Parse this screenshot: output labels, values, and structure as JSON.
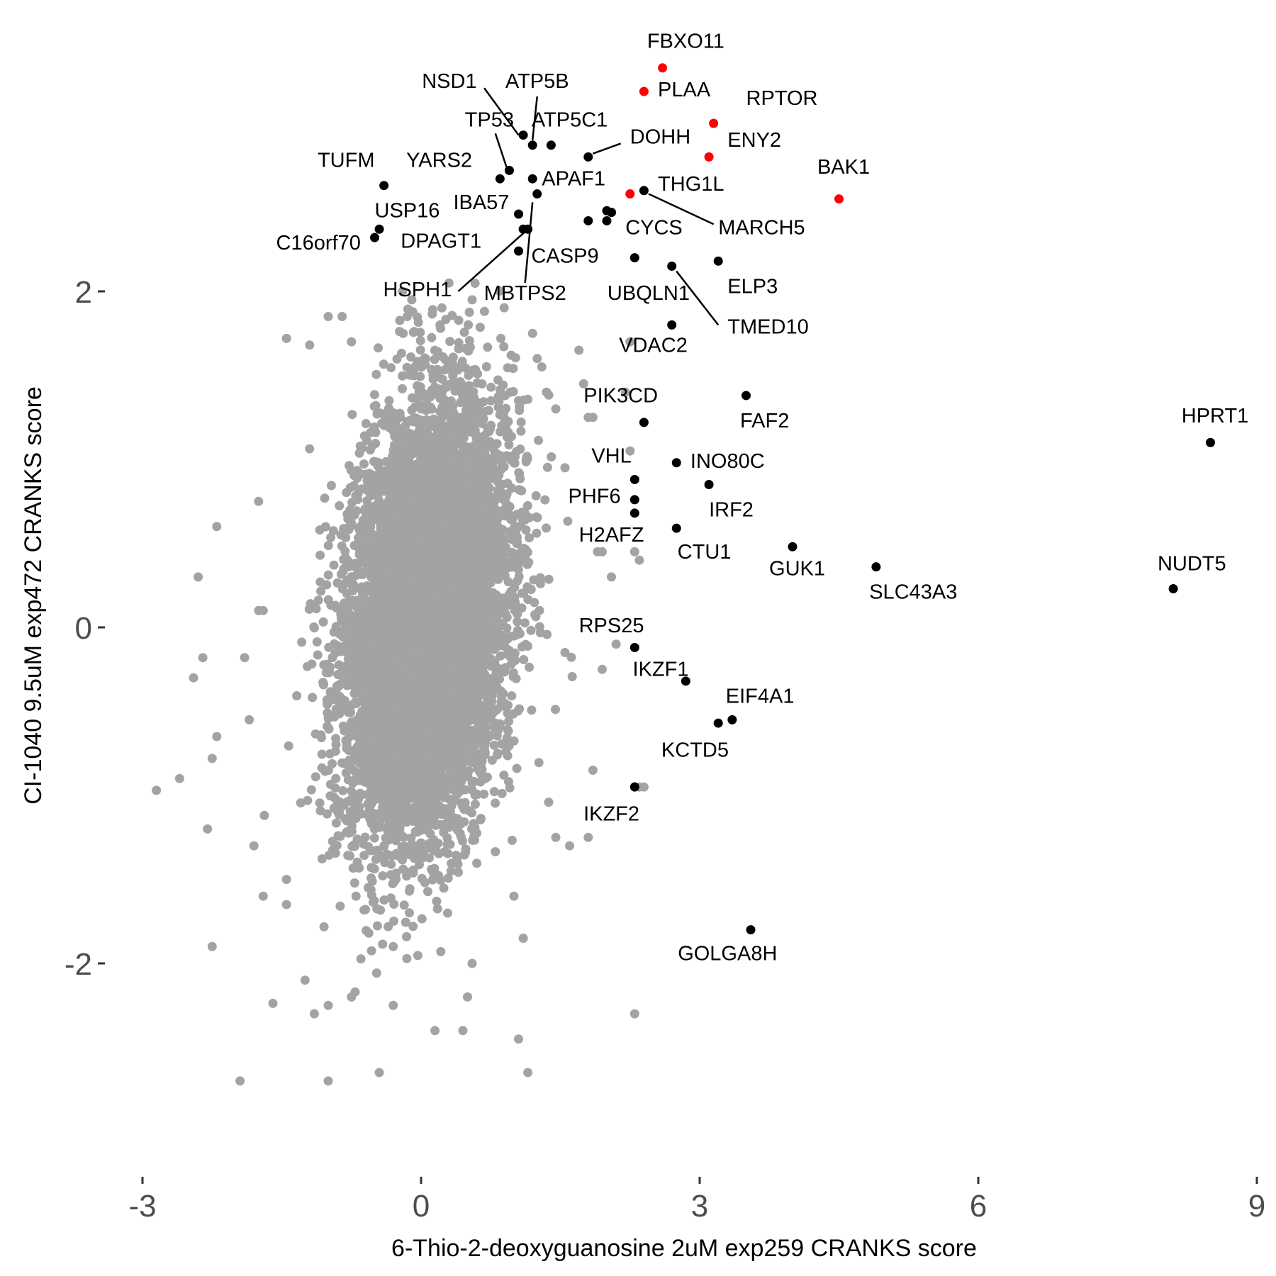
{
  "chart_data": {
    "type": "scatter",
    "title": "",
    "xlabel": "6-Thio-2-deoxyguanosine 2uM exp259 CRANKS score",
    "ylabel": "CI-1040 9.5uM exp472 CRANKS score",
    "xlim": [
      -3.4,
      9
    ],
    "ylim": [
      -3.2,
      3.45
    ],
    "x_ticks": [
      -3,
      0,
      3,
      6,
      9
    ],
    "x_tick_labels": [
      "-3",
      "0",
      "3",
      "6",
      "9"
    ],
    "y_ticks": [
      -2,
      0,
      2
    ],
    "y_tick_labels": [
      "-2",
      "0",
      "2"
    ],
    "grid": false,
    "legend": "none",
    "colors": {
      "background": "#e8e8e8",
      "highlight": "#ff0000",
      "labeled": "#000000",
      "tick": "#4d4d4d"
    },
    "background_cloud": {
      "description_free": true,
      "x_mean": 0.05,
      "x_sd": 0.42,
      "y_mean": 0.05,
      "y_sd": 0.62,
      "correlation": 0.25,
      "count": 9000,
      "sparse_points": [
        [
          -2.85,
          -0.97
        ],
        [
          -2.6,
          -0.9
        ],
        [
          -2.45,
          -0.3
        ],
        [
          -2.4,
          0.3
        ],
        [
          -2.35,
          -0.18
        ],
        [
          -2.3,
          -1.2
        ],
        [
          -2.25,
          -0.78
        ],
        [
          -2.2,
          0.6
        ],
        [
          -2.2,
          -0.65
        ],
        [
          -2.25,
          -1.9
        ],
        [
          -1.9,
          -0.18
        ],
        [
          -1.85,
          -0.55
        ],
        [
          -1.75,
          0.1
        ],
        [
          -1.75,
          0.75
        ],
        [
          -1.7,
          0.1
        ],
        [
          -1.8,
          -1.3
        ],
        [
          -1.7,
          -1.6
        ],
        [
          -1.95,
          -2.7
        ],
        [
          -1.45,
          1.72
        ],
        [
          -1.45,
          -1.5
        ],
        [
          -1.45,
          -1.65
        ],
        [
          -1.2,
          1.68
        ],
        [
          -1.25,
          -2.1
        ],
        [
          -1.15,
          -2.3
        ],
        [
          -1.0,
          1.85
        ],
        [
          -1.0,
          -2.25
        ],
        [
          -1.0,
          -2.7
        ],
        [
          -0.85,
          1.85
        ],
        [
          -0.75,
          1.7
        ],
        [
          -0.7,
          -1.6
        ],
        [
          -0.75,
          -2.2
        ],
        [
          -0.45,
          -2.65
        ],
        [
          -0.3,
          -2.25
        ],
        [
          -0.2,
          2.0
        ],
        [
          -0.3,
          -1.9
        ],
        [
          -0.15,
          1.85
        ],
        [
          -0.1,
          1.95
        ],
        [
          0.15,
          -2.4
        ],
        [
          0.3,
          2.05
        ],
        [
          0.45,
          -2.4
        ],
        [
          0.5,
          -2.2
        ],
        [
          0.55,
          1.95
        ],
        [
          0.55,
          -2.0
        ],
        [
          1.0,
          -1.6
        ],
        [
          1.05,
          -2.45
        ],
        [
          1.1,
          -1.85
        ],
        [
          1.15,
          -2.65
        ],
        [
          1.2,
          1.75
        ],
        [
          1.25,
          1.6
        ],
        [
          1.3,
          1.55
        ],
        [
          1.35,
          1.4
        ],
        [
          1.45,
          1.3
        ],
        [
          1.45,
          -1.25
        ],
        [
          1.55,
          -0.15
        ],
        [
          1.55,
          0.95
        ],
        [
          1.6,
          -1.3
        ],
        [
          1.7,
          1.65
        ],
        [
          1.75,
          1.45
        ],
        [
          1.8,
          1.25
        ],
        [
          1.8,
          -1.25
        ],
        [
          1.85,
          -0.85
        ],
        [
          1.85,
          1.25
        ],
        [
          1.9,
          0.45
        ],
        [
          1.95,
          -0.25
        ],
        [
          1.95,
          0.45
        ],
        [
          2.05,
          0.3
        ],
        [
          2.1,
          -0.1
        ],
        [
          2.2,
          1.4
        ],
        [
          2.25,
          1.7
        ],
        [
          2.25,
          1.05
        ],
        [
          2.3,
          0.45
        ],
        [
          2.35,
          0.4
        ],
        [
          2.35,
          -0.95
        ],
        [
          2.3,
          -2.3
        ],
        [
          2.4,
          -0.95
        ]
      ]
    },
    "highlighted_points": [
      {
        "gene": "FBXO11",
        "x": 2.6,
        "y": 3.33
      },
      {
        "gene": "PLAA",
        "x": 2.4,
        "y": 3.19
      },
      {
        "gene": "RPTOR",
        "x": 3.15,
        "y": 3.0
      },
      {
        "gene": "ENY2",
        "x": 3.1,
        "y": 2.8
      },
      {
        "gene": "BAK1",
        "x": 4.5,
        "y": 2.55
      },
      {
        "gene": "MARCH5",
        "x": 2.25,
        "y": 2.58
      }
    ],
    "labeled_points": [
      {
        "gene": "NSD1",
        "x": 1.1,
        "y": 2.93
      },
      {
        "gene": "ATP5B",
        "x": 1.2,
        "y": 2.87
      },
      {
        "gene": "ATP5C1",
        "x": 1.4,
        "y": 2.87
      },
      {
        "gene": "TP53",
        "x": 0.95,
        "y": 2.72
      },
      {
        "gene": "DOHH",
        "x": 1.8,
        "y": 2.8
      },
      {
        "gene": "YARS2",
        "x": 0.85,
        "y": 2.67
      },
      {
        "gene": "APAF1",
        "x": 1.2,
        "y": 2.67
      },
      {
        "gene": "CASP9",
        "x": 1.25,
        "y": 2.58
      },
      {
        "gene": "TUFM",
        "x": -0.4,
        "y": 2.63
      },
      {
        "gene": "IBA57",
        "x": 1.05,
        "y": 2.46
      },
      {
        "gene": "USP16",
        "x": -0.45,
        "y": 2.37
      },
      {
        "gene": "C16orf70",
        "x": -0.5,
        "y": 2.32
      },
      {
        "gene": "DPAGT1",
        "x": 1.15,
        "y": 2.37
      },
      {
        "gene": "HSPH1",
        "x": 1.05,
        "y": 2.24
      },
      {
        "gene": "MBTPS2",
        "x": 1.1,
        "y": 2.37
      },
      {
        "gene": "THG1L",
        "x": 2.4,
        "y": 2.6
      },
      {
        "gene": "CYCS",
        "x": 2.0,
        "y": 2.48
      },
      {
        "gene": "CYCS_b",
        "x": 2.05,
        "y": 2.47
      },
      {
        "gene": "CYCS_c",
        "x": 2.0,
        "y": 2.42
      },
      {
        "gene": "CYCS_d",
        "x": 1.8,
        "y": 2.42
      },
      {
        "gene": "UBQLN1",
        "x": 2.3,
        "y": 2.2
      },
      {
        "gene": "TMED10",
        "x": 2.7,
        "y": 2.15
      },
      {
        "gene": "ELP3",
        "x": 3.2,
        "y": 2.18
      },
      {
        "gene": "VDAC2",
        "x": 2.7,
        "y": 1.8
      },
      {
        "gene": "FAF2",
        "x": 3.5,
        "y": 1.38
      },
      {
        "gene": "PIK3CD",
        "x": 2.4,
        "y": 1.22
      },
      {
        "gene": "HPRT1",
        "x": 8.5,
        "y": 1.1
      },
      {
        "gene": "INO80C",
        "x": 2.75,
        "y": 0.98
      },
      {
        "gene": "VHL",
        "x": 2.3,
        "y": 0.88
      },
      {
        "gene": "IRF2",
        "x": 3.1,
        "y": 0.85
      },
      {
        "gene": "PHF6",
        "x": 2.3,
        "y": 0.76
      },
      {
        "gene": "PHF6_b",
        "x": 2.3,
        "y": 0.68
      },
      {
        "gene": "CTU1",
        "x": 2.75,
        "y": 0.59
      },
      {
        "gene": "GUK1",
        "x": 4.0,
        "y": 0.48
      },
      {
        "gene": "SLC43A3",
        "x": 4.9,
        "y": 0.36
      },
      {
        "gene": "NUDT5",
        "x": 8.1,
        "y": 0.23
      },
      {
        "gene": "RPS25",
        "x": 2.3,
        "y": -0.12
      },
      {
        "gene": "IKZF1",
        "x": 2.85,
        "y": -0.32
      },
      {
        "gene": "EIF4A1",
        "x": 3.35,
        "y": -0.55
      },
      {
        "gene": "KCTD5",
        "x": 3.2,
        "y": -0.57
      },
      {
        "gene": "IKZF2",
        "x": 2.3,
        "y": -0.95
      },
      {
        "gene": "GOLGA8H",
        "x": 3.55,
        "y": -1.8
      }
    ],
    "labels": [
      {
        "text": "FBXO11",
        "x": 2.85,
        "y": 3.45,
        "anchor": "middle"
      },
      {
        "text": "PLAA",
        "x": 2.55,
        "y": 3.16,
        "anchor": "start"
      },
      {
        "text": "RPTOR",
        "x": 3.5,
        "y": 3.11,
        "anchor": "start"
      },
      {
        "text": "ENY2",
        "x": 3.3,
        "y": 2.86,
        "anchor": "start"
      },
      {
        "text": "BAK1",
        "x": 4.55,
        "y": 2.7,
        "anchor": "middle"
      },
      {
        "text": "NSD1",
        "x": 0.6,
        "y": 3.21,
        "anchor": "end"
      },
      {
        "text": "ATP5B",
        "x": 1.25,
        "y": 3.21,
        "anchor": "middle"
      },
      {
        "text": "TP53",
        "x": 1.0,
        "y": 2.98,
        "anchor": "end"
      },
      {
        "text": "ATP5C1",
        "x": 1.6,
        "y": 2.98,
        "anchor": "middle"
      },
      {
        "text": "DOHH",
        "x": 2.25,
        "y": 2.88,
        "anchor": "start"
      },
      {
        "text": "TUFM",
        "x": -0.5,
        "y": 2.74,
        "anchor": "end"
      },
      {
        "text": "YARS2",
        "x": 0.55,
        "y": 2.74,
        "anchor": "end"
      },
      {
        "text": "APAF1",
        "x": 1.3,
        "y": 2.63,
        "anchor": "start"
      },
      {
        "text": "THG1L",
        "x": 2.55,
        "y": 2.6,
        "anchor": "start"
      },
      {
        "text": "IBA57",
        "x": 0.95,
        "y": 2.49,
        "anchor": "end"
      },
      {
        "text": "USP16",
        "x": -0.5,
        "y": 2.44,
        "anchor": "start"
      },
      {
        "text": "CYCS",
        "x": 2.2,
        "y": 2.34,
        "anchor": "start"
      },
      {
        "text": "MARCH5",
        "x": 3.2,
        "y": 2.34,
        "anchor": "start"
      },
      {
        "text": "C16orf70",
        "x": -0.65,
        "y": 2.25,
        "anchor": "end"
      },
      {
        "text": "DPAGT1",
        "x": 0.65,
        "y": 2.26,
        "anchor": "end"
      },
      {
        "text": "CASP9",
        "x": 1.55,
        "y": 2.17,
        "anchor": "middle"
      },
      {
        "text": "HSPH1",
        "x": 0.33,
        "y": 1.97,
        "anchor": "end"
      },
      {
        "text": "MBTPS2",
        "x": 1.12,
        "y": 1.95,
        "anchor": "middle"
      },
      {
        "text": "UBQLN1",
        "x": 2.45,
        "y": 1.95,
        "anchor": "middle"
      },
      {
        "text": "ELP3",
        "x": 3.3,
        "y": 1.99,
        "anchor": "start"
      },
      {
        "text": "TMED10",
        "x": 3.3,
        "y": 1.75,
        "anchor": "start"
      },
      {
        "text": "VDAC2",
        "x": 2.5,
        "y": 1.64,
        "anchor": "middle"
      },
      {
        "text": "PIK3CD",
        "x": 2.15,
        "y": 1.34,
        "anchor": "middle"
      },
      {
        "text": "FAF2",
        "x": 3.7,
        "y": 1.19,
        "anchor": "middle"
      },
      {
        "text": "HPRT1",
        "x": 8.55,
        "y": 1.22,
        "anchor": "middle"
      },
      {
        "text": "VHL",
        "x": 2.05,
        "y": 0.98,
        "anchor": "middle"
      },
      {
        "text": "INO80C",
        "x": 2.9,
        "y": 0.95,
        "anchor": "start"
      },
      {
        "text": "PHF6",
        "x": 2.15,
        "y": 0.74,
        "anchor": "end"
      },
      {
        "text": "IRF2",
        "x": 3.1,
        "y": 0.66,
        "anchor": "start"
      },
      {
        "text": "H2AFZ",
        "x": 2.05,
        "y": 0.51,
        "anchor": "middle"
      },
      {
        "text": "CTU1",
        "x": 3.05,
        "y": 0.41,
        "anchor": "middle"
      },
      {
        "text": "GUK1",
        "x": 4.05,
        "y": 0.31,
        "anchor": "middle"
      },
      {
        "text": "NUDT5",
        "x": 8.3,
        "y": 0.34,
        "anchor": "middle"
      },
      {
        "text": "SLC43A3",
        "x": 5.3,
        "y": 0.17,
        "anchor": "middle"
      },
      {
        "text": "RPS25",
        "x": 2.05,
        "y": -0.03,
        "anchor": "middle"
      },
      {
        "text": "IKZF1",
        "x": 2.58,
        "y": -0.29,
        "anchor": "middle"
      },
      {
        "text": "EIF4A1",
        "x": 3.65,
        "y": -0.45,
        "anchor": "middle"
      },
      {
        "text": "KCTD5",
        "x": 2.95,
        "y": -0.77,
        "anchor": "middle"
      },
      {
        "text": "IKZF2",
        "x": 2.05,
        "y": -1.15,
        "anchor": "middle"
      },
      {
        "text": "GOLGA8H",
        "x": 3.3,
        "y": -1.98,
        "anchor": "middle"
      }
    ],
    "connectors": [
      [
        0.68,
        3.21,
        1.05,
        2.93
      ],
      [
        1.25,
        3.16,
        1.2,
        2.9
      ],
      [
        0.8,
        2.94,
        0.92,
        2.74
      ],
      [
        1.85,
        2.82,
        2.15,
        2.88
      ],
      [
        1.15,
        2.37,
        0.4,
        2.0
      ],
      [
        1.2,
        2.53,
        1.12,
        2.05
      ],
      [
        2.45,
        2.58,
        3.15,
        2.4
      ],
      [
        2.75,
        2.12,
        3.2,
        1.8
      ]
    ]
  }
}
